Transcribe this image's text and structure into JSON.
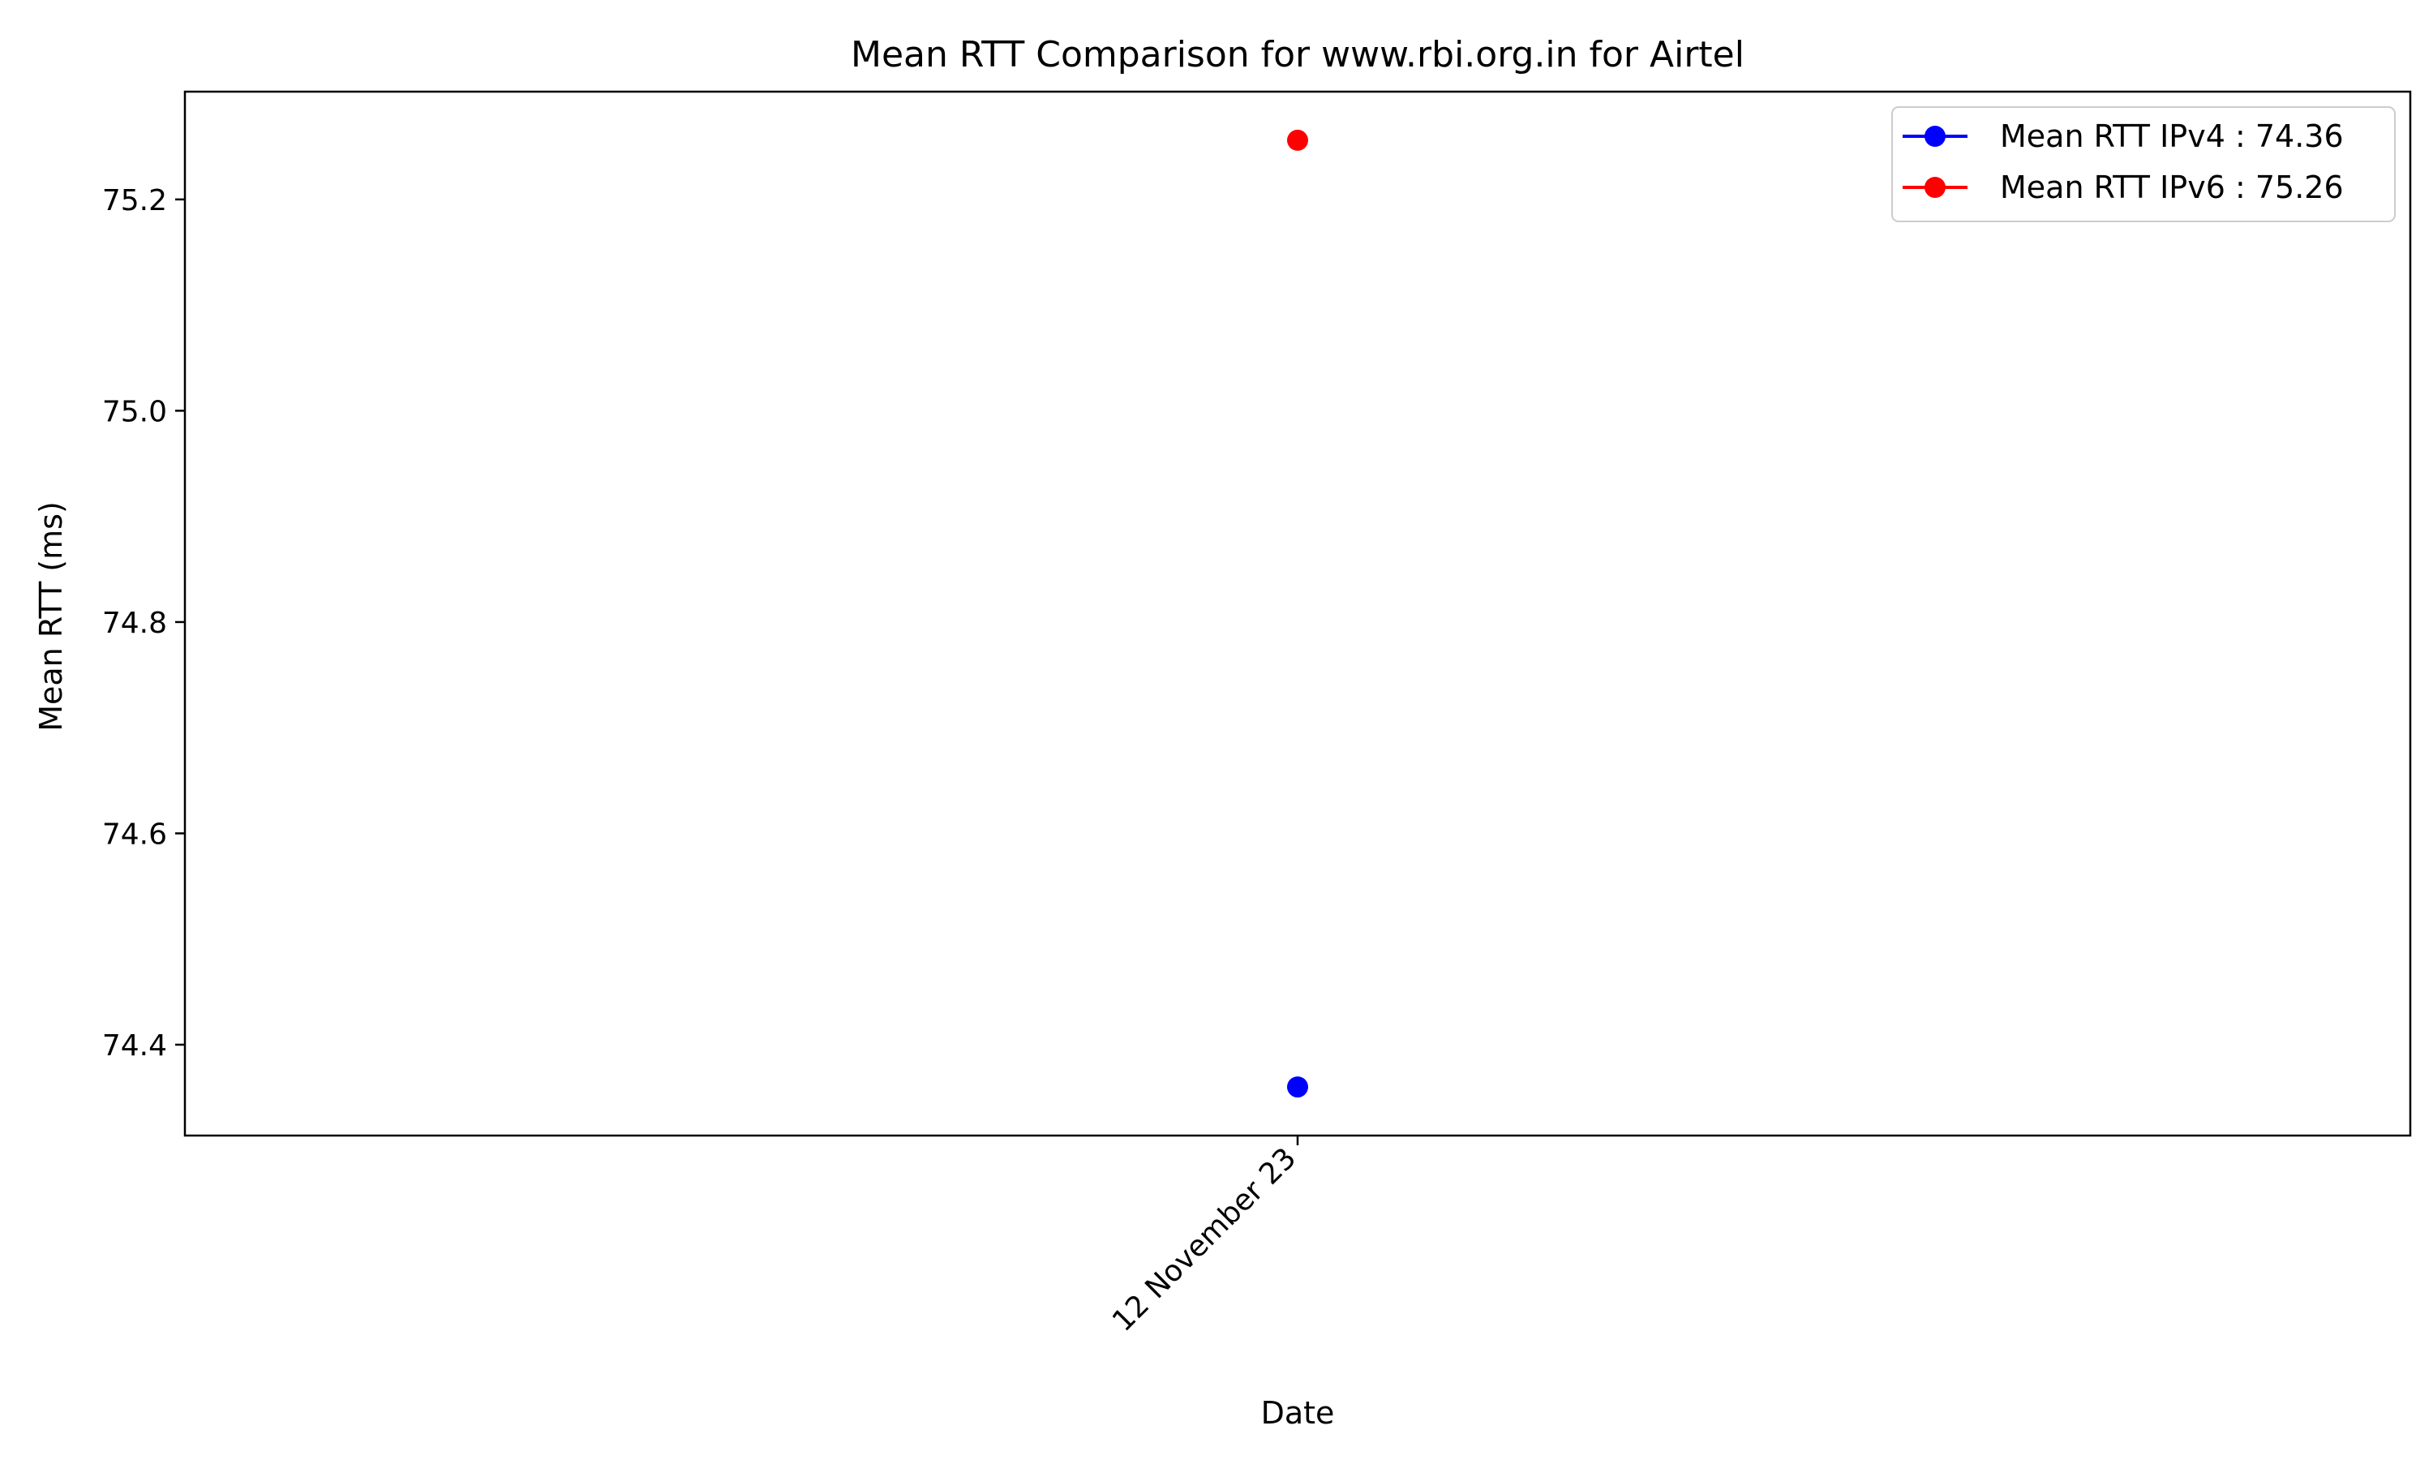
{
  "chart_data": {
    "type": "scatter",
    "title": "Mean RTT Comparison for www.rbi.org.in for Airtel",
    "xlabel": "Date",
    "ylabel": "Mean RTT (ms)",
    "x_categories": [
      "12 November 23"
    ],
    "ylim": [
      74.314,
      75.302
    ],
    "yticks": [
      74.4,
      74.6,
      74.8,
      75.0,
      75.2
    ],
    "ytick_labels": [
      "74.4",
      "74.6",
      "74.8",
      "75.0",
      "75.2"
    ],
    "legend_position": "top-right",
    "grid": false,
    "series": [
      {
        "name": "Mean RTT IPv4 : 74.36",
        "color": "#0000ff",
        "points": [
          {
            "x": "12 November 23",
            "y": 74.36
          }
        ]
      },
      {
        "name": "Mean RTT IPv6 : 75.26",
        "color": "#ff0000",
        "points": [
          {
            "x": "12 November 23",
            "y": 75.256
          }
        ]
      }
    ]
  }
}
